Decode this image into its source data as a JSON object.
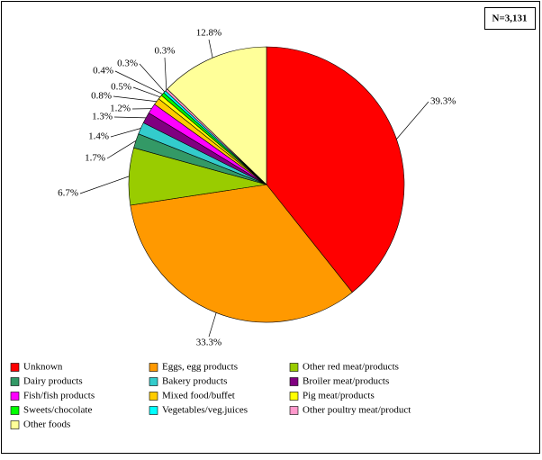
{
  "chart_data": {
    "type": "pie",
    "annotation": "N=3,131",
    "categories": [
      "Unknown",
      "Eggs, egg products",
      "Other red meat/products",
      "Dairy products",
      "Bakery products",
      "Broiler meat/products",
      "Fish/fish products",
      "Mixed food/buffet",
      "Pig meat/products",
      "Sweets/chocolate",
      "Vegetables/veg.juices",
      "Other poultry meat/product",
      "Other foods"
    ],
    "values": [
      39.3,
      33.3,
      6.7,
      1.7,
      1.4,
      1.3,
      1.2,
      0.8,
      0.5,
      0.4,
      0.3,
      0.3,
      12.8
    ],
    "value_labels": [
      "39.3%",
      "33.3%",
      "6.7%",
      "1.7%",
      "1.4%",
      "1.3%",
      "1.2%",
      "0.8%",
      "0.5%",
      "0.4%",
      "0.3%",
      "0.3%",
      "12.8%"
    ],
    "colors": [
      "#ff0000",
      "#ff9900",
      "#99cc00",
      "#339966",
      "#33cccc",
      "#800080",
      "#ff00ff",
      "#ffcc00",
      "#ffff00",
      "#00ff00",
      "#00ffff",
      "#ff99cc",
      "#ffff99"
    ]
  }
}
